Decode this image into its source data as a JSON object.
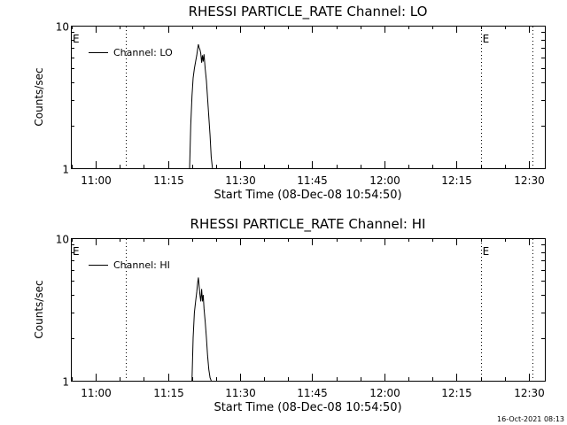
{
  "timestamp": "16-Oct-2021 08:13",
  "chart_data": [
    {
      "type": "line",
      "title": "RHESSI PARTICLE_RATE Channel: LO",
      "xlabel": "Start Time (08-Dec-08 10:54:50)",
      "ylabel": "Counts/sec",
      "legend": "Channel: LO",
      "legend_position": "top-left",
      "xscale": "linear",
      "yscale": "log",
      "xlim": [
        "10:54:50",
        "12:33:20"
      ],
      "ylim": [
        1,
        10
      ],
      "x_ticks": [
        "11:00",
        "11:15",
        "11:30",
        "11:45",
        "12:00",
        "12:15",
        "12:30"
      ],
      "y_tick_labels": [
        "1",
        "10"
      ],
      "eclipse_markers": [
        {
          "label": "E",
          "time": "10:54:50"
        },
        {
          "label": "E",
          "time": "12:20:00"
        }
      ],
      "dotted_lines": [
        "11:06:20",
        "12:20:00",
        "12:30:40"
      ],
      "series": [
        {
          "x": [
            "11:19:30",
            "11:19:45",
            "11:20:00",
            "11:20:15",
            "11:20:30",
            "11:20:45",
            "11:21:00",
            "11:21:10",
            "11:21:20",
            "11:21:30",
            "11:21:40",
            "11:21:50",
            "11:22:00",
            "11:22:10",
            "11:22:20",
            "11:22:30",
            "11:22:45",
            "11:23:00",
            "11:23:15",
            "11:23:30",
            "11:23:45",
            "11:24:00",
            "11:24:15"
          ],
          "y": [
            1.0,
            2.0,
            3.2,
            4.3,
            5.0,
            5.6,
            6.2,
            6.8,
            7.4,
            7.0,
            6.8,
            6.4,
            5.5,
            6.2,
            5.6,
            6.3,
            5.0,
            4.1,
            3.1,
            2.3,
            1.7,
            1.2,
            1.0
          ]
        }
      ]
    },
    {
      "type": "line",
      "title": "RHESSI PARTICLE_RATE Channel: HI",
      "xlabel": "Start Time (08-Dec-08 10:54:50)",
      "ylabel": "Counts/sec",
      "legend": "Channel: HI",
      "legend_position": "top-left",
      "xscale": "linear",
      "yscale": "log",
      "xlim": [
        "10:54:50",
        "12:33:20"
      ],
      "ylim": [
        1,
        10
      ],
      "x_ticks": [
        "11:00",
        "11:15",
        "11:30",
        "11:45",
        "12:00",
        "12:15",
        "12:30"
      ],
      "y_tick_labels": [
        "1",
        "10"
      ],
      "eclipse_markers": [
        {
          "label": "E",
          "time": "10:54:50"
        },
        {
          "label": "E",
          "time": "12:20:00"
        }
      ],
      "dotted_lines": [
        "11:06:20",
        "12:20:00",
        "12:30:40"
      ],
      "series": [
        {
          "x": [
            "11:20:00",
            "11:20:15",
            "11:20:30",
            "11:20:45",
            "11:21:00",
            "11:21:10",
            "11:21:20",
            "11:21:30",
            "11:21:40",
            "11:21:50",
            "11:22:00",
            "11:22:10",
            "11:22:20",
            "11:22:30",
            "11:22:45",
            "11:23:00",
            "11:23:15",
            "11:23:30",
            "11:23:45",
            "11:24:00"
          ],
          "y": [
            1.0,
            2.0,
            3.0,
            3.6,
            4.2,
            4.8,
            5.3,
            4.6,
            4.0,
            3.6,
            4.4,
            3.6,
            4.0,
            3.2,
            2.6,
            2.0,
            1.5,
            1.2,
            1.05,
            1.0
          ]
        }
      ]
    }
  ]
}
